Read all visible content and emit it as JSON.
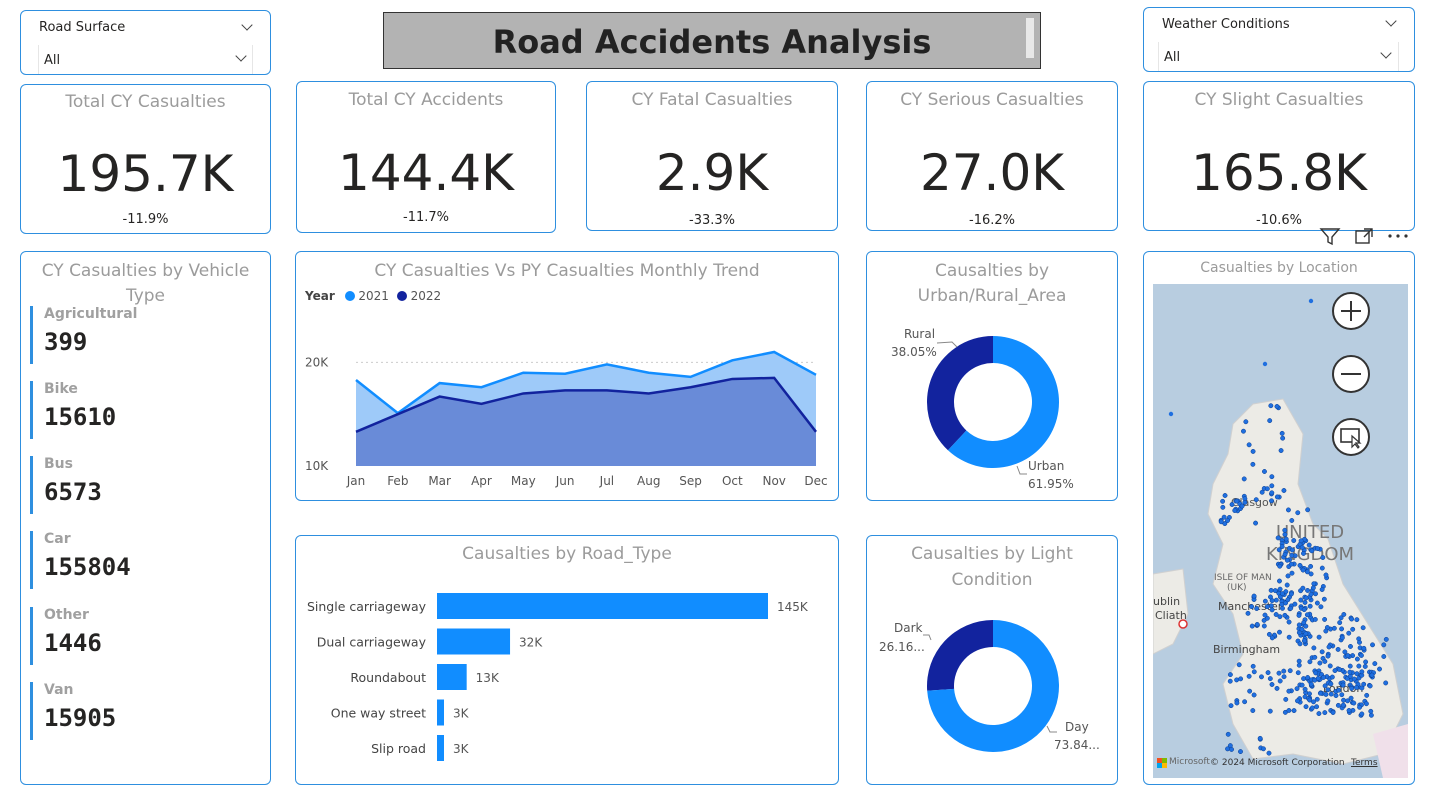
{
  "title": "Road Accidents Analysis",
  "slicers": {
    "road_surface": {
      "label": "Road Surface",
      "value": "All"
    },
    "weather": {
      "label": "Weather Conditions",
      "value": "All"
    }
  },
  "kpis": [
    {
      "title": "Total CY Casualties",
      "value": "195.7K",
      "delta": "-11.9%"
    },
    {
      "title": "Total CY Accidents",
      "value": "144.4K",
      "delta": "-11.7%"
    },
    {
      "title": "CY Fatal Casualties",
      "value": "2.9K",
      "delta": "-33.3%"
    },
    {
      "title": "CY Serious Casualties",
      "value": "27.0K",
      "delta": "-16.2%"
    },
    {
      "title": "CY Slight Casualties",
      "value": "165.8K",
      "delta": "-10.6%"
    }
  ],
  "vehicle": {
    "title_line1": "CY Casualties by Vehicle",
    "title_line2": "Type",
    "items": [
      {
        "label": "Agricultural",
        "value": "399"
      },
      {
        "label": "Bike",
        "value": "15610"
      },
      {
        "label": "Bus",
        "value": "6573"
      },
      {
        "label": "Car",
        "value": "155804"
      },
      {
        "label": "Other",
        "value": "1446"
      },
      {
        "label": "Van",
        "value": "15905"
      }
    ]
  },
  "trend": {
    "title": "CY Casualties Vs PY Casualties Monthly Trend",
    "legend_title": "Year",
    "legend": [
      {
        "name": "2021",
        "color": "#118dff"
      },
      {
        "name": "2022",
        "color": "#12239e"
      }
    ]
  },
  "urban": {
    "title_line1": "Causalties by",
    "title_line2": "Urban/Rural_Area",
    "labels": [
      {
        "name": "Rural",
        "pct": "38.05%"
      },
      {
        "name": "Urban",
        "pct": "61.95%"
      }
    ]
  },
  "road_type": {
    "title": "Causalties by Road_Type"
  },
  "light": {
    "title_line1": "Causalties by Light",
    "title_line2": "Condition",
    "labels": [
      {
        "name": "Dark",
        "pct": "26.16..."
      },
      {
        "name": "Day",
        "pct": "73.84..."
      }
    ]
  },
  "map": {
    "title": "Casualties by Location",
    "labels": {
      "country_line1": "UNITED",
      "country_line2": "KINGDOM",
      "glasgow": "Glasgow",
      "isle": "ISLE OF MAN",
      "isle2": "(UK)",
      "manchester": "Manchester",
      "birmingham": "Birmingham",
      "dublin": "ublin",
      "cliath": "Cliath",
      "london": "London"
    },
    "attribution": "© 2024 Microsoft Corporation",
    "terms": "Terms",
    "ms": "Microsoft"
  },
  "chart_data": [
    {
      "type": "area",
      "title": "CY Casualties Vs PY Casualties Monthly Trend",
      "categories": [
        "Jan",
        "Feb",
        "Mar",
        "Apr",
        "May",
        "Jun",
        "Jul",
        "Aug",
        "Sep",
        "Oct",
        "Nov",
        "Dec"
      ],
      "yticks": [
        "10K",
        "20K"
      ],
      "ylim": [
        10000,
        21000
      ],
      "series": [
        {
          "name": "2021",
          "color": "#118dff",
          "values": [
            18300,
            15100,
            18000,
            17600,
            19000,
            18900,
            19800,
            19000,
            18600,
            20200,
            21000,
            18800
          ]
        },
        {
          "name": "2022",
          "color": "#12239e",
          "values": [
            13300,
            15000,
            16700,
            16000,
            17000,
            17300,
            17300,
            17000,
            17600,
            18400,
            18500,
            13300
          ]
        }
      ],
      "legend": "top-left"
    },
    {
      "type": "pie",
      "title": "Causalties by Urban/Rural_Area",
      "slices": [
        {
          "name": "Rural",
          "value": 38.05,
          "color": "#12239e"
        },
        {
          "name": "Urban",
          "value": 61.95,
          "color": "#118dff"
        }
      ]
    },
    {
      "type": "bar",
      "title": "Causalties by Road_Type",
      "categories": [
        "Single carriageway",
        "Dual carriageway",
        "Roundabout",
        "One way street",
        "Slip road"
      ],
      "values": [
        145000,
        32000,
        13000,
        3000,
        3000
      ],
      "labels": [
        "145K",
        "32K",
        "13K",
        "3K",
        "3K"
      ],
      "color": "#118dff"
    },
    {
      "type": "pie",
      "title": "Causalties by Light Condition",
      "slices": [
        {
          "name": "Dark",
          "value": 26.16,
          "color": "#12239e"
        },
        {
          "name": "Day",
          "value": 73.84,
          "color": "#118dff"
        }
      ]
    }
  ]
}
